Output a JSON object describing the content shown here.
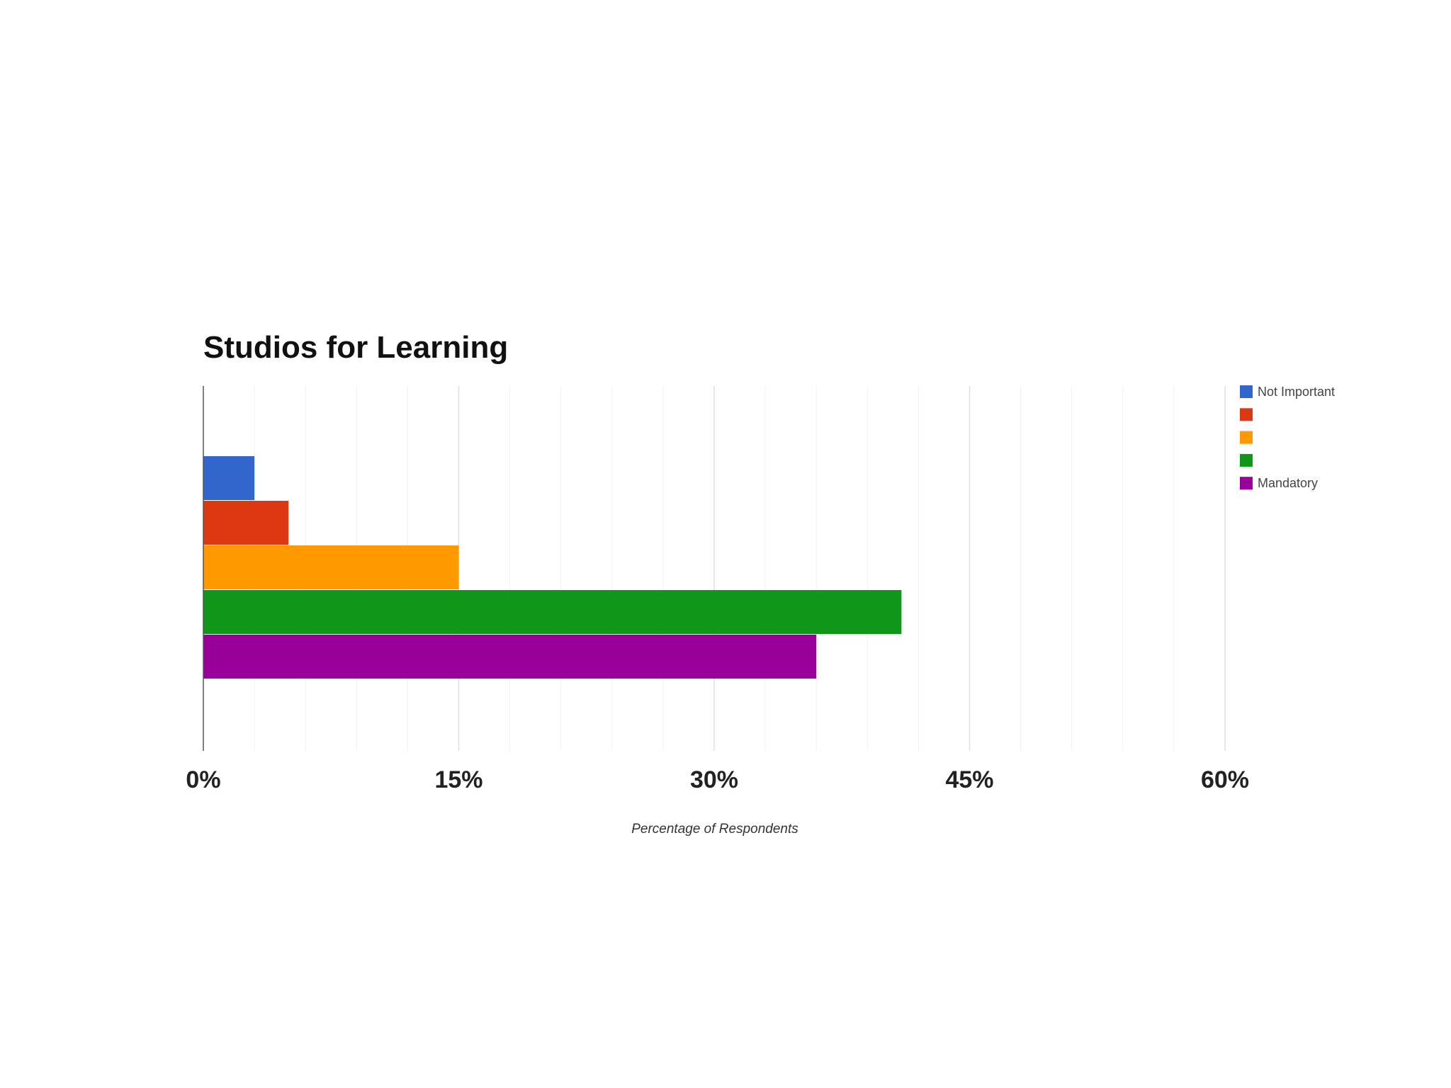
{
  "chart_data": {
    "type": "bar",
    "orientation": "horizontal",
    "title": "Studios for Learning",
    "xlabel": "Percentage of Respondents",
    "ylabel": "",
    "xlim": [
      0,
      60
    ],
    "x_ticks": [
      0,
      15,
      30,
      45,
      60
    ],
    "x_tick_labels": [
      "0%",
      "15%",
      "30%",
      "45%",
      "60%"
    ],
    "grid": true,
    "legend_position": "top-right",
    "series": [
      {
        "name": "Not Important",
        "value": 3,
        "color": "#3366cc"
      },
      {
        "name": "",
        "value": 5,
        "color": "#dc3912"
      },
      {
        "name": "",
        "value": 15,
        "color": "#ff9900"
      },
      {
        "name": "",
        "value": 41,
        "color": "#109618"
      },
      {
        "name": "Mandatory",
        "value": 36,
        "color": "#990099"
      }
    ]
  }
}
